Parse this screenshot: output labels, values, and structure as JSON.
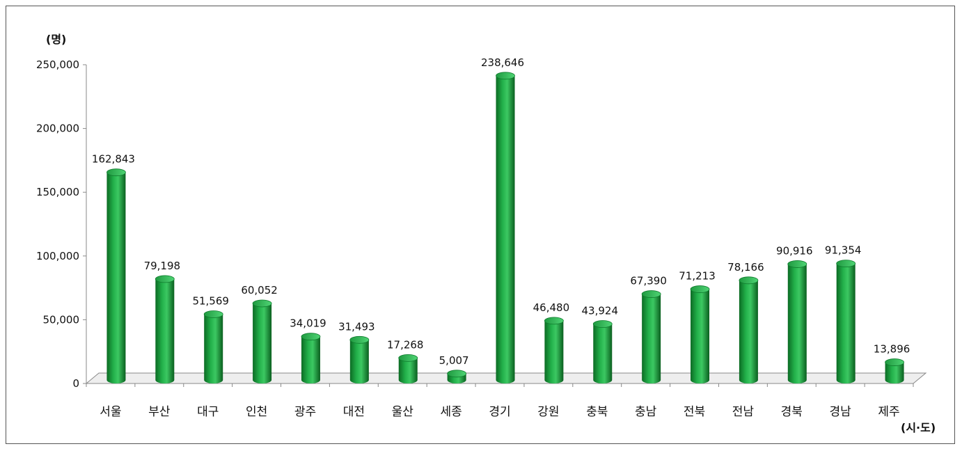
{
  "chart_data": {
    "type": "bar",
    "ylabel": "(명)",
    "xlabel": "(시·도)",
    "ylim": [
      0,
      250000
    ],
    "yticks": [
      "0",
      "50,000",
      "100,000",
      "150,000",
      "200,000",
      "250,000"
    ],
    "ytick_values": [
      0,
      50000,
      100000,
      150000,
      200000,
      250000
    ],
    "categories": [
      "서울",
      "부산",
      "대구",
      "인천",
      "광주",
      "대전",
      "울산",
      "세종",
      "경기",
      "강원",
      "충북",
      "충남",
      "전북",
      "전남",
      "경북",
      "경남",
      "제주"
    ],
    "values": [
      162843,
      79198,
      51569,
      60052,
      34019,
      31493,
      17268,
      5007,
      238646,
      46480,
      43924,
      67390,
      71213,
      78166,
      90916,
      91354,
      13896
    ],
    "value_labels": [
      "162,843",
      "79,198",
      "51,569",
      "60,052",
      "34,019",
      "31,493",
      "17,268",
      "5,007",
      "238,646",
      "46,480",
      "43,924",
      "67,390",
      "71,213",
      "78,166",
      "90,916",
      "91,354",
      "13,896"
    ],
    "bar_color": "#1a9a3a",
    "grid": false
  }
}
